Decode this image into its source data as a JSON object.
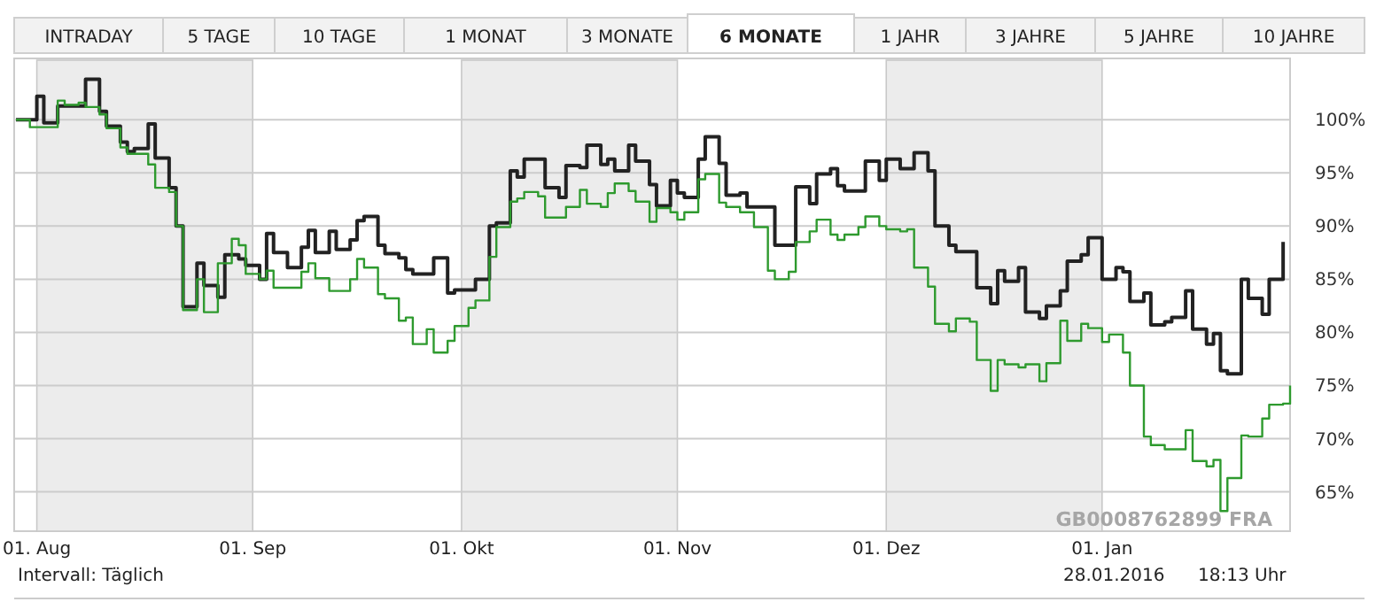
{
  "chart_data": {
    "type": "step",
    "xlim": [
      "2015-07-29",
      "2016-01-28"
    ],
    "ylim": [
      61.3,
      105.6
    ],
    "xticks": [
      {
        "value": "2015-08-01",
        "label": "01. Aug"
      },
      {
        "value": "2015-09-01",
        "label": "01. Sep"
      },
      {
        "value": "2015-10-01",
        "label": "01. Okt"
      },
      {
        "value": "2015-11-01",
        "label": "01. Nov"
      },
      {
        "value": "2015-12-01",
        "label": "01. Dez"
      },
      {
        "value": "2016-01-01",
        "label": "01. Jan"
      }
    ],
    "yticks": [
      {
        "value": 65,
        "label": "65%"
      },
      {
        "value": 70,
        "label": "70%"
      },
      {
        "value": 75,
        "label": "75%"
      },
      {
        "value": 80,
        "label": "80%"
      },
      {
        "value": 85,
        "label": "85%"
      },
      {
        "value": 90,
        "label": "90%"
      },
      {
        "value": 95,
        "label": "95%"
      },
      {
        "value": 100,
        "label": "100%"
      }
    ],
    "grid": "y",
    "bands": [
      {
        "axis": "x",
        "from": "2015-08-01",
        "to": "2015-09-01",
        "color": "#ececec"
      },
      {
        "axis": "x",
        "from": "2015-10-01",
        "to": "2015-11-01",
        "color": "#ececec"
      },
      {
        "axis": "x",
        "from": "2015-12-01",
        "to": "2016-01-01",
        "color": "#ececec"
      }
    ],
    "annotations": [
      "INTRADAY",
      "5 TAGE",
      "10 TAGE",
      "1 MONAT",
      "3 MONATE",
      "6 MONATE",
      "1 JAHR",
      "3 JAHRE",
      "5 JAHRE",
      "10 JAHRE",
      "Intervall: Täglich",
      "28.01.2016",
      "18:13 Uhr",
      "GB0008762899 FRA"
    ],
    "series": [
      {
        "color": "#222222",
        "x": [
          "2015-07-29",
          "2015-08-01",
          "2015-08-02",
          "2015-08-04",
          "2015-08-08",
          "2015-08-10",
          "2015-08-11",
          "2015-08-13",
          "2015-08-14",
          "2015-08-15",
          "2015-08-17",
          "2015-08-18",
          "2015-08-20",
          "2015-08-21",
          "2015-08-22",
          "2015-08-24",
          "2015-08-25",
          "2015-08-27",
          "2015-08-28",
          "2015-08-30",
          "2015-08-31",
          "2015-09-02",
          "2015-09-03",
          "2015-09-04",
          "2015-09-06",
          "2015-09-08",
          "2015-09-09",
          "2015-09-10",
          "2015-09-12",
          "2015-09-13",
          "2015-09-15",
          "2015-09-16",
          "2015-09-17",
          "2015-09-19",
          "2015-09-20",
          "2015-09-22",
          "2015-09-23",
          "2015-09-24",
          "2015-09-27",
          "2015-09-29",
          "2015-09-30",
          "2015-10-03",
          "2015-10-05",
          "2015-10-06",
          "2015-10-08",
          "2015-10-09",
          "2015-10-10",
          "2015-10-13",
          "2015-10-15",
          "2015-10-16",
          "2015-10-18",
          "2015-10-19",
          "2015-10-21",
          "2015-10-22",
          "2015-10-23",
          "2015-10-25",
          "2015-10-26",
          "2015-10-28",
          "2015-10-29",
          "2015-10-31",
          "2015-11-01",
          "2015-11-02",
          "2015-11-04",
          "2015-11-05",
          "2015-11-07",
          "2015-11-08",
          "2015-11-10",
          "2015-11-11",
          "2015-11-15",
          "2015-11-18",
          "2015-11-20",
          "2015-11-21",
          "2015-11-23",
          "2015-11-24",
          "2015-11-25",
          "2015-11-28",
          "2015-11-30",
          "2015-12-01",
          "2015-12-03",
          "2015-12-05",
          "2015-12-07",
          "2015-12-08",
          "2015-12-10",
          "2015-12-11",
          "2015-12-14",
          "2015-12-16",
          "2015-12-17",
          "2015-12-18",
          "2015-12-20",
          "2015-12-21",
          "2015-12-23",
          "2015-12-24",
          "2015-12-26",
          "2015-12-27",
          "2015-12-29",
          "2015-12-30",
          "2016-01-01",
          "2016-01-03",
          "2016-01-04",
          "2016-01-05",
          "2016-01-07",
          "2016-01-08",
          "2016-01-10",
          "2016-01-11",
          "2016-01-13",
          "2016-01-14",
          "2016-01-16",
          "2016-01-17",
          "2016-01-18",
          "2016-01-19",
          "2016-01-21",
          "2016-01-22",
          "2016-01-24",
          "2016-01-25",
          "2016-01-27"
        ],
        "values": [
          100,
          102.2,
          99.7,
          101.3,
          103.8,
          100.8,
          99.4,
          97.9,
          97,
          97.3,
          99.6,
          96.4,
          93.6,
          90,
          82.4,
          86.5,
          84.4,
          83.3,
          87.3,
          86.9,
          86.3,
          85,
          89.3,
          87.5,
          86.1,
          88,
          89.6,
          87.5,
          89.5,
          87.8,
          88.7,
          90.5,
          90.9,
          88.2,
          87.4,
          87,
          85.9,
          85.5,
          87,
          83.7,
          84,
          85,
          90,
          90.3,
          95.2,
          94.6,
          96.3,
          93.6,
          92.7,
          95.7,
          95.5,
          97.6,
          95.8,
          96.3,
          95.2,
          97.6,
          96.1,
          93.9,
          91.9,
          94.3,
          93.1,
          92.7,
          96.3,
          98.4,
          95.9,
          92.9,
          93.1,
          91.8,
          88.2,
          93.7,
          92.1,
          94.9,
          95.4,
          93.8,
          93.3,
          96.1,
          94.3,
          96.3,
          95.4,
          96.9,
          95.2,
          90,
          88.2,
          87.6,
          84.2,
          82.7,
          85.8,
          84.8,
          86.1,
          81.9,
          81.3,
          82.5,
          83.9,
          86.7,
          87.3,
          88.9,
          85,
          86.1,
          85.7,
          82.9,
          83.7,
          80.7,
          81,
          81.4,
          83.9,
          80.3,
          78.9,
          79.9,
          76.4,
          76.1,
          85,
          83.2,
          81.7,
          85,
          88.5
        ]
      },
      {
        "color": "#2e9a2e",
        "x": [
          "2015-07-29",
          "2015-07-31",
          "2015-08-04",
          "2015-08-05",
          "2015-08-07",
          "2015-08-08",
          "2015-08-10",
          "2015-08-11",
          "2015-08-13",
          "2015-08-14",
          "2015-08-17",
          "2015-08-18",
          "2015-08-20",
          "2015-08-21",
          "2015-08-22",
          "2015-08-24",
          "2015-08-25",
          "2015-08-27",
          "2015-08-29",
          "2015-08-30",
          "2015-08-31",
          "2015-09-02",
          "2015-09-03",
          "2015-09-04",
          "2015-09-08",
          "2015-09-09",
          "2015-09-10",
          "2015-09-12",
          "2015-09-15",
          "2015-09-16",
          "2015-09-17",
          "2015-09-19",
          "2015-09-20",
          "2015-09-22",
          "2015-09-23",
          "2015-09-24",
          "2015-09-26",
          "2015-09-27",
          "2015-09-29",
          "2015-09-30",
          "2015-10-02",
          "2015-10-03",
          "2015-10-05",
          "2015-10-06",
          "2015-10-08",
          "2015-10-09",
          "2015-10-10",
          "2015-10-12",
          "2015-10-13",
          "2015-10-16",
          "2015-10-18",
          "2015-10-19",
          "2015-10-21",
          "2015-10-22",
          "2015-10-23",
          "2015-10-25",
          "2015-10-26",
          "2015-10-28",
          "2015-10-29",
          "2015-10-31",
          "2015-11-01",
          "2015-11-02",
          "2015-11-04",
          "2015-11-05",
          "2015-11-07",
          "2015-11-08",
          "2015-11-10",
          "2015-11-12",
          "2015-11-14",
          "2015-11-15",
          "2015-11-17",
          "2015-11-18",
          "2015-11-20",
          "2015-11-21",
          "2015-11-23",
          "2015-11-24",
          "2015-11-25",
          "2015-11-27",
          "2015-11-28",
          "2015-11-30",
          "2015-12-01",
          "2015-12-03",
          "2015-12-04",
          "2015-12-05",
          "2015-12-07",
          "2015-12-08",
          "2015-12-10",
          "2015-12-11",
          "2015-12-13",
          "2015-12-14",
          "2015-12-16",
          "2015-12-17",
          "2015-12-18",
          "2015-12-20",
          "2015-12-21",
          "2015-12-23",
          "2015-12-24",
          "2015-12-26",
          "2015-12-27",
          "2015-12-29",
          "2015-12-30",
          "2016-01-01",
          "2016-01-02",
          "2016-01-04",
          "2016-01-05",
          "2016-01-07",
          "2016-01-08",
          "2016-01-10",
          "2016-01-13",
          "2016-01-14",
          "2016-01-16",
          "2016-01-17",
          "2016-01-18",
          "2016-01-19",
          "2016-01-21",
          "2016-01-22",
          "2016-01-24",
          "2016-01-25",
          "2016-01-27",
          "2016-01-28"
        ],
        "values": [
          100,
          99.3,
          101.8,
          101.4,
          101.6,
          101.2,
          100.5,
          99.2,
          97.4,
          96.8,
          95.8,
          93.6,
          93.2,
          90,
          82.1,
          85,
          81.9,
          86.5,
          88.8,
          88.2,
          85.5,
          85,
          85.8,
          84.2,
          85.7,
          86.5,
          85.1,
          83.9,
          85,
          86.9,
          86.1,
          83.6,
          83.2,
          81.1,
          81.4,
          78.9,
          80.3,
          78.1,
          79.2,
          80.6,
          82.3,
          83,
          87.1,
          89.9,
          92.3,
          92.6,
          93.2,
          92.8,
          90.8,
          91.8,
          93.4,
          92.1,
          91.8,
          93.1,
          94,
          93.3,
          92.3,
          90.4,
          91.7,
          91.3,
          90.6,
          91.3,
          94.4,
          94.9,
          92.2,
          91.8,
          91.3,
          89.9,
          85.8,
          85,
          85.7,
          88.5,
          89.5,
          90.6,
          89.2,
          88.7,
          89.2,
          89.9,
          90.9,
          90,
          89.7,
          89.5,
          89.7,
          86.1,
          84.3,
          80.8,
          80.1,
          81.3,
          81,
          77.4,
          74.5,
          77.4,
          77,
          76.7,
          77,
          75.4,
          77.1,
          81.1,
          79.2,
          80.8,
          80.4,
          79.1,
          79.8,
          78.1,
          75,
          70.2,
          69.4,
          69,
          70.8,
          67.9,
          67.4,
          68,
          63.2,
          66.3,
          70.3,
          70.2,
          71.9,
          73.2,
          73.3,
          75
        ]
      }
    ]
  }
}
